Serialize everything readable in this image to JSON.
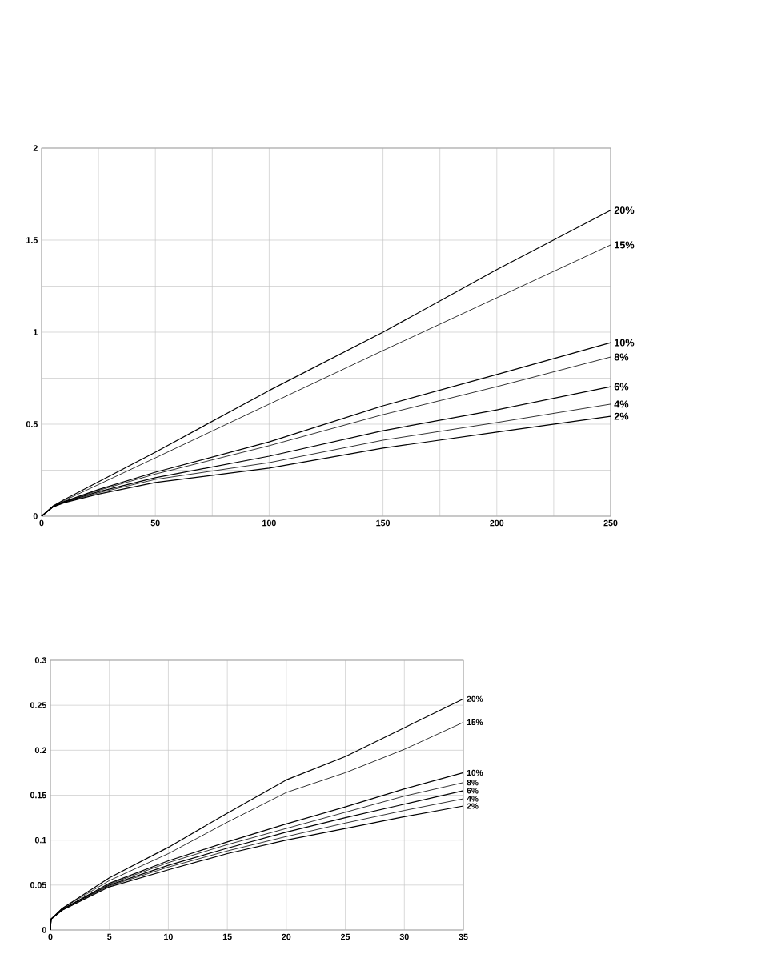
{
  "chart_data": [
    {
      "type": "line",
      "xlim": [
        0,
        250
      ],
      "ylim": [
        0,
        2
      ],
      "xticks": [
        0,
        {
          "value": 25,
          "label": null
        },
        50,
        {
          "value": 75,
          "label": null
        },
        100,
        {
          "value": 125,
          "label": null
        },
        150,
        {
          "value": 175,
          "label": null
        },
        200,
        {
          "value": 225,
          "label": null
        },
        250
      ],
      "yticks": [
        0,
        {
          "value": 0.25,
          "label": null
        },
        0.5,
        {
          "value": 0.75,
          "label": null
        },
        1,
        {
          "value": 1.25,
          "label": null
        },
        1.5,
        {
          "value": 1.75,
          "label": null
        },
        2
      ],
      "grid": true,
      "marker": "none",
      "x": [
        0,
        5,
        10,
        25,
        50,
        100,
        150,
        200,
        250
      ],
      "series": [
        {
          "name": "20%",
          "color": "#000000",
          "values": [
            0,
            0.055,
            0.09,
            0.187,
            0.348,
            0.683,
            1.0,
            1.34,
            1.662
          ]
        },
        {
          "name": "15%",
          "color": "#000000",
          "values": [
            0,
            0.054,
            0.085,
            0.172,
            0.317,
            0.609,
            0.9,
            1.187,
            1.474
          ]
        },
        {
          "name": "10%",
          "color": "#000000",
          "values": [
            0,
            0.053,
            0.08,
            0.145,
            0.239,
            0.404,
            0.6,
            0.77,
            0.943
          ]
        },
        {
          "name": "8%",
          "color": "#000000",
          "values": [
            0,
            0.052,
            0.078,
            0.14,
            0.229,
            0.383,
            0.552,
            0.704,
            0.865
          ]
        },
        {
          "name": "6%",
          "color": "#000000",
          "values": [
            0,
            0.051,
            0.077,
            0.133,
            0.209,
            0.326,
            0.465,
            0.578,
            0.704
          ]
        },
        {
          "name": "4%",
          "color": "#000000",
          "values": [
            0,
            0.05,
            0.075,
            0.127,
            0.2,
            0.291,
            0.413,
            0.509,
            0.609
          ]
        },
        {
          "name": "2%",
          "color": "#000000",
          "values": [
            0,
            0.05,
            0.073,
            0.12,
            0.183,
            0.261,
            0.37,
            0.457,
            0.543
          ]
        }
      ]
    },
    {
      "type": "line",
      "xlim": [
        0,
        35
      ],
      "ylim": [
        0,
        0.3
      ],
      "xticks": [
        0,
        5,
        10,
        15,
        20,
        25,
        30,
        35
      ],
      "yticks": [
        0,
        0.05,
        0.1,
        0.15,
        0.2,
        0.25,
        0.3
      ],
      "grid": true,
      "marker": "none",
      "x": [
        0,
        0.05,
        1,
        5,
        10,
        15,
        20,
        25,
        30,
        35
      ],
      "series": [
        {
          "name": "20%",
          "color": "#000000",
          "values": [
            0,
            0.012,
            0.024,
            0.058,
            0.092,
            0.13,
            0.167,
            0.193,
            0.225,
            0.257
          ]
        },
        {
          "name": "15%",
          "color": "#000000",
          "values": [
            0,
            0.012,
            0.024,
            0.055,
            0.085,
            0.12,
            0.153,
            0.175,
            0.201,
            0.231
          ]
        },
        {
          "name": "10%",
          "color": "#000000",
          "values": [
            0,
            0.012,
            0.023,
            0.052,
            0.077,
            0.098,
            0.118,
            0.137,
            0.157,
            0.175
          ]
        },
        {
          "name": "8%",
          "color": "#000000",
          "values": [
            0,
            0.012,
            0.023,
            0.051,
            0.075,
            0.095,
            0.113,
            0.131,
            0.149,
            0.164
          ]
        },
        {
          "name": "6%",
          "color": "#000000",
          "values": [
            0,
            0.012,
            0.023,
            0.05,
            0.072,
            0.091,
            0.109,
            0.125,
            0.14,
            0.155
          ]
        },
        {
          "name": "4%",
          "color": "#000000",
          "values": [
            0,
            0.012,
            0.022,
            0.049,
            0.07,
            0.088,
            0.104,
            0.119,
            0.133,
            0.146
          ]
        },
        {
          "name": "2%",
          "color": "#000000",
          "values": [
            0,
            0.012,
            0.022,
            0.048,
            0.067,
            0.085,
            0.1,
            0.113,
            0.126,
            0.138
          ]
        }
      ]
    }
  ]
}
